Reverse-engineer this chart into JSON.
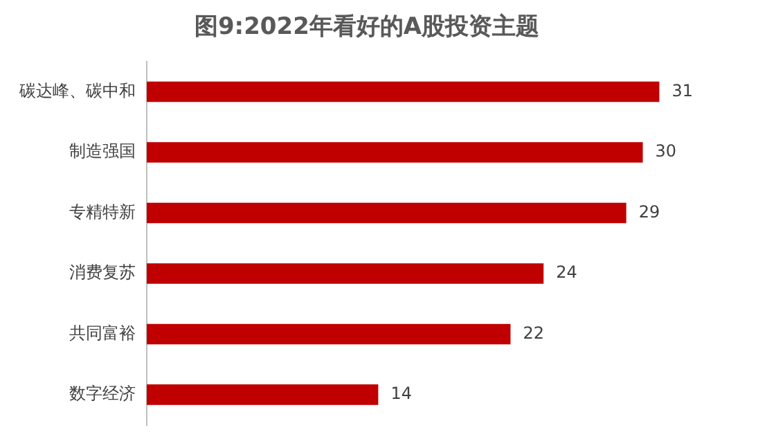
{
  "chart_data": {
    "type": "bar",
    "orientation": "horizontal",
    "title": "图9:2022年看好的A股投资主题",
    "categories": [
      "碳达峰、碳中和",
      "制造强国",
      "专精特新",
      "消费复苏",
      "共同富裕",
      "数字经济"
    ],
    "values": [
      31,
      30,
      29,
      24,
      22,
      14
    ],
    "color": "#c00000",
    "data_labels": true,
    "legend": false,
    "tick_labels": "y"
  }
}
